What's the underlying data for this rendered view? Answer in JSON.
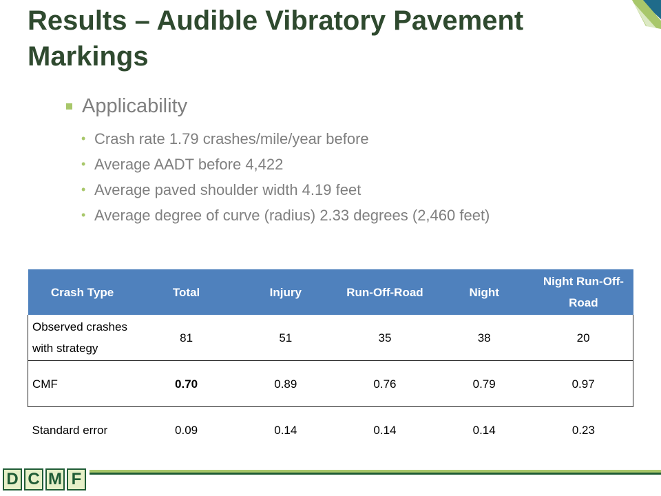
{
  "slide": {
    "title": "Results – Audible Vibratory Pavement Markings",
    "heading": "Applicability",
    "bullets": [
      "Crash rate 1.79 crashes/mile/year before",
      "Average AADT before 4,422",
      "Average paved shoulder width 4.19 feet",
      "Average degree of curve (radius) 2.33 degrees (2,460 feet)"
    ]
  },
  "table": {
    "headers": [
      "Crash Type",
      "Total",
      "Injury",
      "Run-Off-Road",
      "Night",
      "Night Run-Off-Road"
    ],
    "rows": [
      {
        "label": "Observed crashes with strategy",
        "values": [
          "81",
          "51",
          "35",
          "38",
          "20"
        ]
      },
      {
        "label": "CMF",
        "values": [
          "0.70",
          "0.89",
          "0.76",
          "0.79",
          "0.97"
        ]
      },
      {
        "label": "Standard error",
        "values": [
          "0.09",
          "0.14",
          "0.14",
          "0.14",
          "0.23"
        ]
      }
    ]
  },
  "logo": {
    "letters": [
      "D",
      "C",
      "M",
      "F"
    ]
  },
  "colors": {
    "title": "#2f4a2f",
    "header_bg": "#4f81bd",
    "bullet_accent": "#a8c76a",
    "footer_green": "#1f5c35"
  }
}
